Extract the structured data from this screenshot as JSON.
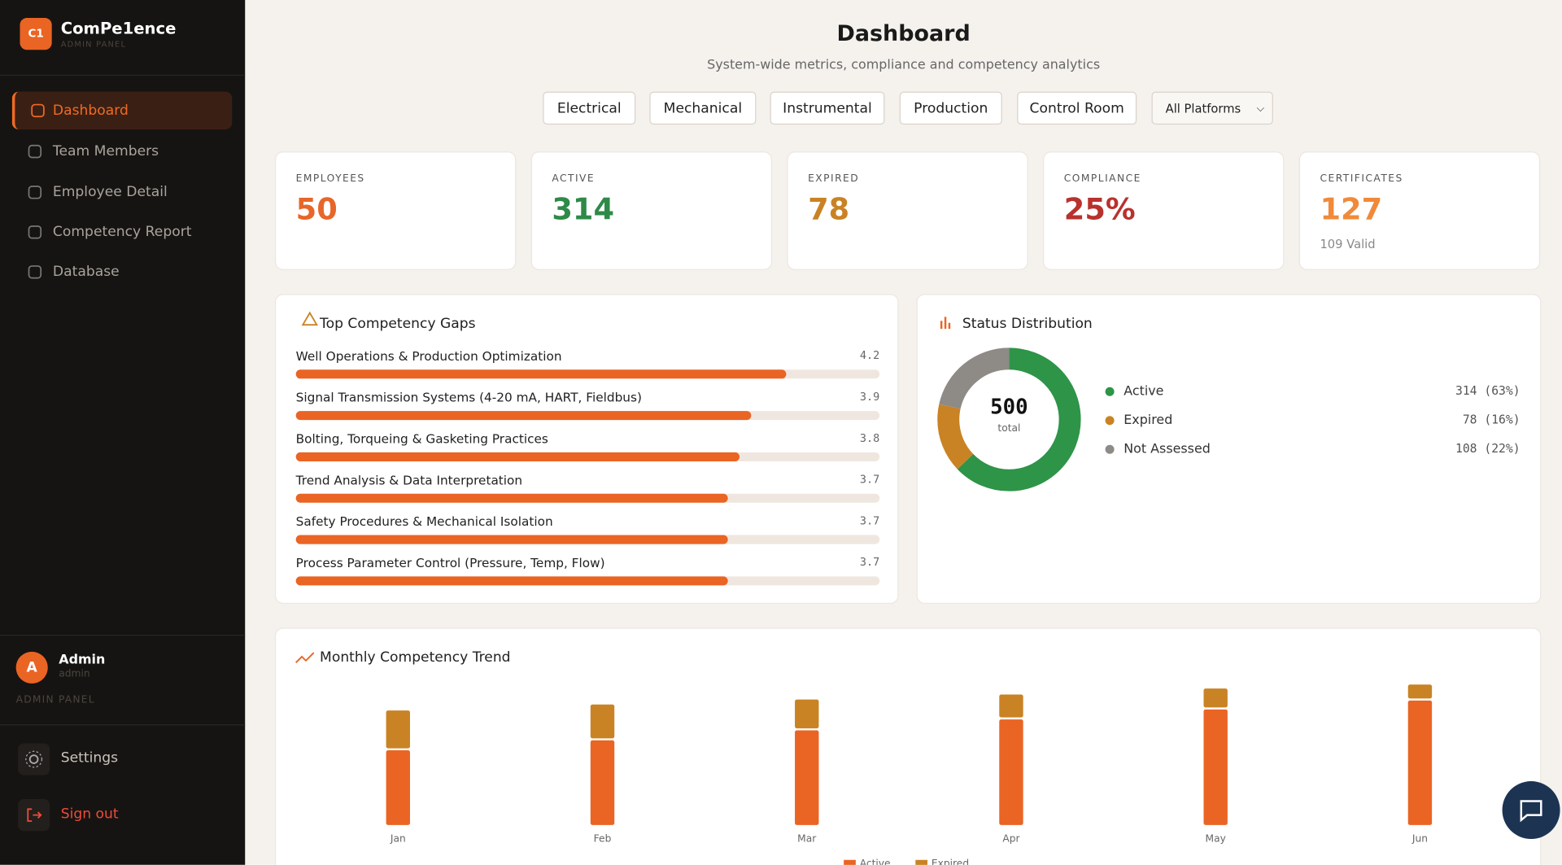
{
  "sidebar": {
    "logo": "C1",
    "brand": "ComPe1ence",
    "brand_sub": "ADMIN PANEL",
    "nav": [
      "Dashboard",
      "Team Members",
      "Employee Detail",
      "Competency Report",
      "Database"
    ],
    "user": {
      "avatar": "A",
      "name": "Admin",
      "role": "admin",
      "panel": "ADMIN PANEL"
    },
    "settings": "Settings",
    "sign_out": "Sign out"
  },
  "header": {
    "title": "Dashboard",
    "subtitle": "System-wide metrics, compliance and competency analytics",
    "filters": [
      "Electrical",
      "Mechanical",
      "Instrumental",
      "Production",
      "Control Room"
    ],
    "platform_select": "All Platforms"
  },
  "stats": [
    {
      "label": "EMPLOYEES",
      "value": "50",
      "color": "#e8662a"
    },
    {
      "label": "ACTIVE",
      "value": "314",
      "color": "#2e8a48"
    },
    {
      "label": "EXPIRED",
      "value": "78",
      "color": "#c98324"
    },
    {
      "label": "COMPLIANCE",
      "value": "25%",
      "color": "#b8322e"
    },
    {
      "label": "CERTIFICATES",
      "value": "127",
      "color": "#f08a3a",
      "note": "109 Valid"
    }
  ],
  "chart_data": [
    {
      "type": "hbar",
      "title": "Top Competency Gaps",
      "categories": [
        "Well Operations & Production Optimization",
        "Signal Transmission Systems (4-20 mA, HART, Fieldbus)",
        "Bolting, Torqueing & Gasketing Practices",
        "Trend Analysis & Data Interpretation",
        "Safety Procedures & Mechanical Isolation",
        "Process Parameter Control (Pressure, Temp, Flow)"
      ],
      "values": [
        4.2,
        3.9,
        3.8,
        3.7,
        3.7,
        3.7
      ],
      "xlim": [
        0,
        5
      ],
      "color": "#ea6424",
      "track_color": "#efe7df"
    },
    {
      "type": "donut",
      "title": "Status Distribution",
      "center_value": 500,
      "center_label": "total",
      "categories": [
        "Active",
        "Expired",
        "Not Assessed"
      ],
      "values": [
        314,
        78,
        108
      ],
      "value_labels": [
        "314 (63%)",
        "78 (16%)",
        "108 (22%)"
      ],
      "colors": [
        "#2e9448",
        "#c98324",
        "#8e8a86"
      ]
    },
    {
      "type": "stacked_bar",
      "title": "Monthly Competency Trend",
      "categories": [
        "Jan",
        "Feb",
        "Mar",
        "Apr",
        "May",
        "Jun"
      ],
      "ylim": [
        0,
        150
      ],
      "series": [
        {
          "name": "Active",
          "color": "#ea6424",
          "values": [
            77,
            87,
            97,
            108,
            118,
            127
          ]
        },
        {
          "name": "Expired",
          "color": "#c98324",
          "values": [
            40,
            36,
            31,
            25,
            21,
            16
          ]
        }
      ]
    }
  ]
}
